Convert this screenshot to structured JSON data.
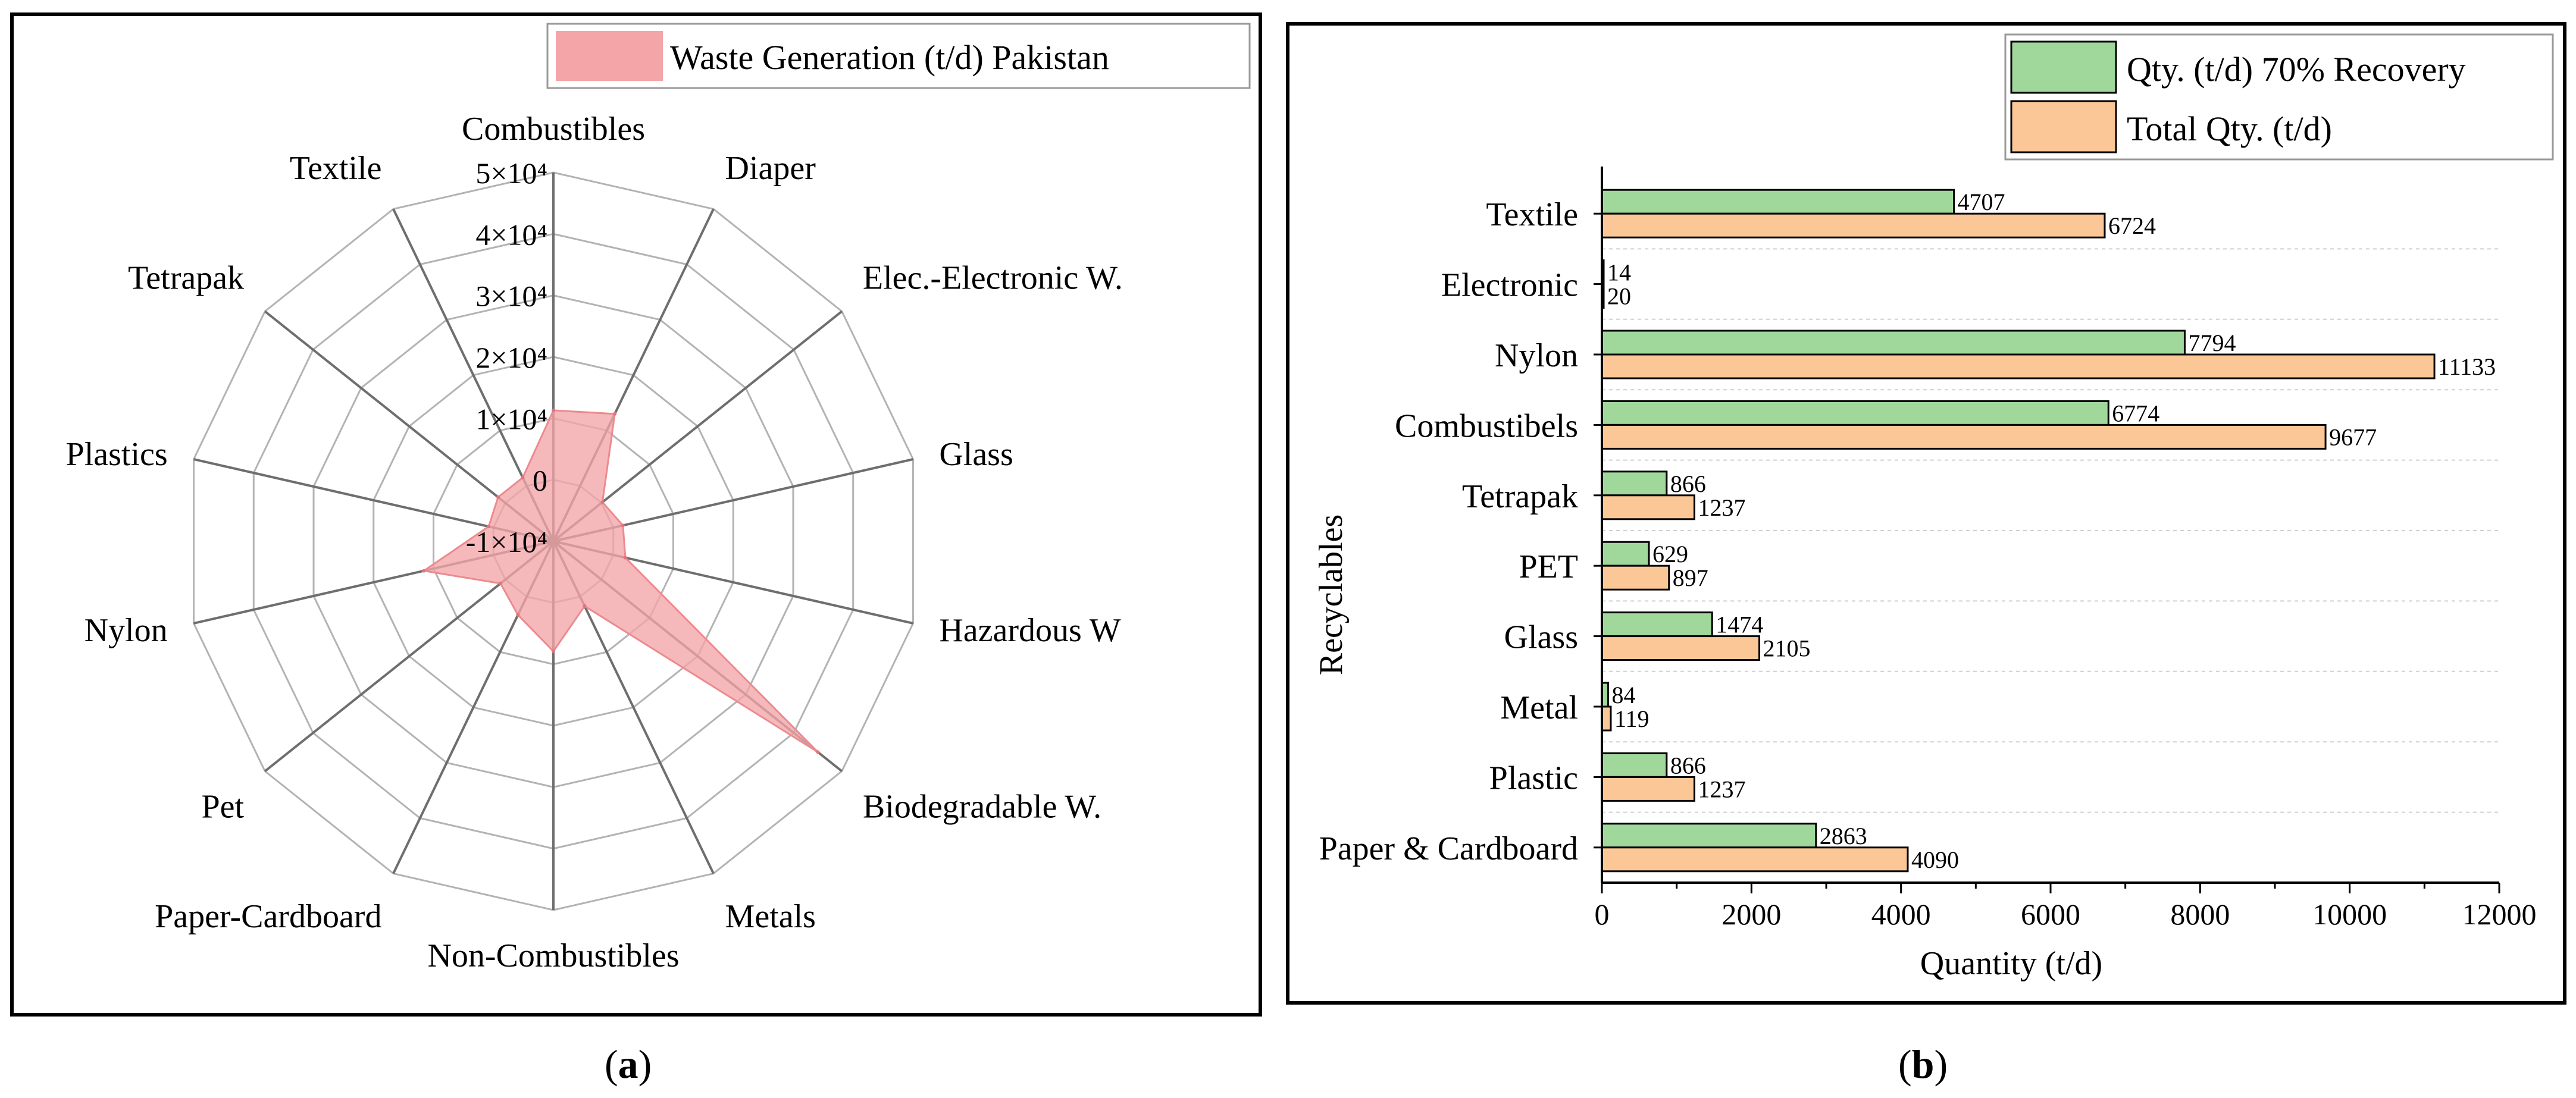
{
  "chart_data": [
    {
      "type": "radar",
      "panel_label": "a",
      "series_name": "Waste Generation (t/d) Pakistan",
      "color": "#f4a5a8",
      "categories": [
        "Combustibles",
        "Diaper",
        "Elec.-Electronic W.",
        "Glass",
        "Hazardous W",
        "Biodegradable W.",
        "Metals",
        "Non-Combustibles",
        "Paper-Cardboard",
        "Pet",
        "Nylon",
        "Plastics",
        "Tetrapak",
        "Textile"
      ],
      "values": [
        11300,
        13000,
        200,
        1600,
        2000,
        45000,
        1700,
        7900,
        3300,
        1000,
        11600,
        800,
        1500,
        1500
      ],
      "r_ticks": [
        "-1×10⁴",
        "0",
        "1×10⁴",
        "2×10⁴",
        "3×10⁴",
        "4×10⁴",
        "5×10⁴"
      ],
      "r_range": [
        -10000,
        50000
      ]
    },
    {
      "type": "bar",
      "orientation": "horizontal",
      "panel_label": "b",
      "xlabel": "Quantity (t/d)",
      "ylabel": "Recyclables",
      "xlim": [
        0,
        12000
      ],
      "x_ticks": [
        "0",
        "2000",
        "4000",
        "6000",
        "8000",
        "10000",
        "12000"
      ],
      "categories": [
        "Textile",
        "Electronic",
        "Nylon",
        "Combustibels",
        "Tetrapak",
        "PET",
        "Glass",
        "Metal",
        "Plastic",
        "Paper & Cardboard"
      ],
      "series": [
        {
          "name": "Qty. (t/d) 70% Recovery",
          "color": "#9fd89a",
          "values": [
            4707,
            14,
            7794,
            6774,
            866,
            629,
            1474,
            84,
            866,
            2863
          ]
        },
        {
          "name": "Total Qty. (t/d)",
          "color": "#fcc797",
          "values": [
            6724,
            20,
            11133,
            9677,
            1237,
            897,
            2105,
            119,
            1237,
            4090
          ]
        }
      ]
    }
  ]
}
